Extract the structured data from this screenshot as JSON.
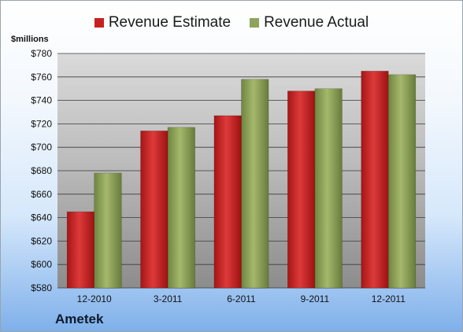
{
  "legend": {
    "estimate_label": "Revenue Estimate",
    "actual_label": "Revenue Actual"
  },
  "unit_label": "$millions",
  "company": "Ametek",
  "colors": {
    "estimate": "#c62121",
    "actual": "#8fa35a"
  },
  "chart_data": {
    "type": "bar",
    "categories": [
      "12-2010",
      "3-2011",
      "6-2011",
      "9-2011",
      "12-2011"
    ],
    "series": [
      {
        "name": "Revenue Estimate",
        "values": [
          645,
          714,
          727,
          748,
          765
        ]
      },
      {
        "name": "Revenue Actual",
        "values": [
          678,
          717,
          758,
          750,
          762
        ]
      }
    ],
    "ylim": [
      580,
      780
    ],
    "yticks": [
      580,
      600,
      620,
      640,
      660,
      680,
      700,
      720,
      740,
      760,
      780
    ],
    "ytick_labels": [
      "$580",
      "$600",
      "$620",
      "$640",
      "$660",
      "$680",
      "$700",
      "$720",
      "$740",
      "$760",
      "$780"
    ],
    "ylabel": "$millions",
    "xlabel": "",
    "grid": true,
    "legend_position": "top"
  }
}
